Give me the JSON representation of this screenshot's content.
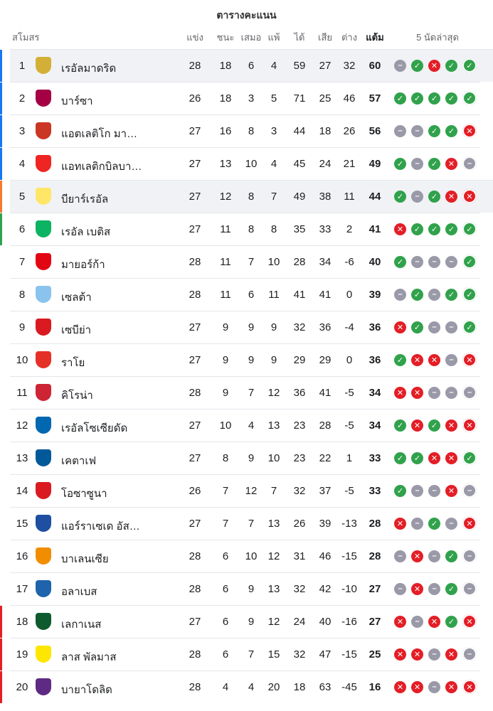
{
  "title": "ตารางคะแนน",
  "headers": {
    "club": "สโมสร",
    "played": "แข่ง",
    "won": "ชนะ",
    "drawn": "เสมอ",
    "lost": "แพ้",
    "gf": "ได้",
    "ga": "เสีย",
    "gd": "ต่าง",
    "pts": "แต้ม",
    "form": "5 นัดล่าสุด"
  },
  "colors": {
    "win": "#31a24c",
    "draw": "#9a99a8",
    "loss": "#e41e26",
    "ucl": "#1877f2",
    "uel": "#f7782f",
    "uecl": "#31a24c",
    "releg": "#e41e26"
  },
  "teams": [
    {
      "pos": "1",
      "name": "เรอัลมาดริด",
      "p": "28",
      "w": "18",
      "d": "6",
      "l": "4",
      "gf": "59",
      "ga": "27",
      "gd": "32",
      "pts": "60",
      "form": "DWLWW",
      "zone": "ucl",
      "crest": "#d4af37"
    },
    {
      "pos": "2",
      "name": "บาร์ซา",
      "p": "26",
      "w": "18",
      "d": "3",
      "l": "5",
      "gf": "71",
      "ga": "25",
      "gd": "46",
      "pts": "57",
      "form": "WWWWW",
      "zone": "ucl",
      "crest": "#a50044"
    },
    {
      "pos": "3",
      "name": "แอตเลติโก มา…",
      "p": "27",
      "w": "16",
      "d": "8",
      "l": "3",
      "gf": "44",
      "ga": "18",
      "gd": "26",
      "pts": "56",
      "form": "DDWWL",
      "zone": "ucl",
      "crest": "#cb3524"
    },
    {
      "pos": "4",
      "name": "แอทเลติกบิลบา…",
      "p": "27",
      "w": "13",
      "d": "10",
      "l": "4",
      "gf": "45",
      "ga": "24",
      "gd": "21",
      "pts": "49",
      "form": "WDWLD",
      "zone": "ucl",
      "crest": "#ee2523"
    },
    {
      "pos": "5",
      "name": "บียาร์เรอัล",
      "p": "27",
      "w": "12",
      "d": "8",
      "l": "7",
      "gf": "49",
      "ga": "38",
      "gd": "11",
      "pts": "44",
      "form": "WDWLL",
      "zone": "uel",
      "crest": "#ffe667"
    },
    {
      "pos": "6",
      "name": "เรอัล เบติส",
      "p": "27",
      "w": "11",
      "d": "8",
      "l": "8",
      "gf": "35",
      "ga": "33",
      "gd": "2",
      "pts": "41",
      "form": "LWWWW",
      "zone": "uecl",
      "crest": "#0bb363"
    },
    {
      "pos": "7",
      "name": "มายอร์ก้า",
      "p": "28",
      "w": "11",
      "d": "7",
      "l": "10",
      "gf": "28",
      "ga": "34",
      "gd": "-6",
      "pts": "40",
      "form": "WDDDW",
      "zone": "",
      "crest": "#e20613"
    },
    {
      "pos": "8",
      "name": "เซลต้า",
      "p": "28",
      "w": "11",
      "d": "6",
      "l": "11",
      "gf": "41",
      "ga": "41",
      "gd": "0",
      "pts": "39",
      "form": "DWDWW",
      "zone": "",
      "crest": "#8ac3ee"
    },
    {
      "pos": "9",
      "name": "เซบีย่า",
      "p": "27",
      "w": "9",
      "d": "9",
      "l": "9",
      "gf": "32",
      "ga": "36",
      "gd": "-4",
      "pts": "36",
      "form": "LWDDW",
      "zone": "",
      "crest": "#d91a21"
    },
    {
      "pos": "10",
      "name": "ราโย",
      "p": "27",
      "w": "9",
      "d": "9",
      "l": "9",
      "gf": "29",
      "ga": "29",
      "gd": "0",
      "pts": "36",
      "form": "WLLDL",
      "zone": "",
      "crest": "#e53027"
    },
    {
      "pos": "11",
      "name": "คิโรน่า",
      "p": "28",
      "w": "9",
      "d": "7",
      "l": "12",
      "gf": "36",
      "ga": "41",
      "gd": "-5",
      "pts": "34",
      "form": "LLDDD",
      "zone": "",
      "crest": "#cd2534"
    },
    {
      "pos": "12",
      "name": "เรอัลโซเซียดัด",
      "p": "27",
      "w": "10",
      "d": "4",
      "l": "13",
      "gf": "23",
      "ga": "28",
      "gd": "-5",
      "pts": "34",
      "form": "WLWLL",
      "zone": "",
      "crest": "#0067b1"
    },
    {
      "pos": "13",
      "name": "เคตาเฟ",
      "p": "27",
      "w": "8",
      "d": "9",
      "l": "10",
      "gf": "23",
      "ga": "22",
      "gd": "1",
      "pts": "33",
      "form": "WWLLW",
      "zone": "",
      "crest": "#005999"
    },
    {
      "pos": "14",
      "name": "โอซาซูนา",
      "p": "26",
      "w": "7",
      "d": "12",
      "l": "7",
      "gf": "32",
      "ga": "37",
      "gd": "-5",
      "pts": "33",
      "form": "WDDLD",
      "zone": "",
      "crest": "#d91a21"
    },
    {
      "pos": "15",
      "name": "แอร์ราเซเด อัส…",
      "p": "27",
      "w": "7",
      "d": "7",
      "l": "13",
      "gf": "26",
      "ga": "39",
      "gd": "-13",
      "pts": "28",
      "form": "LDWDL",
      "zone": "",
      "crest": "#1e4fa1"
    },
    {
      "pos": "16",
      "name": "บาเลนเซีย",
      "p": "28",
      "w": "6",
      "d": "10",
      "l": "12",
      "gf": "31",
      "ga": "46",
      "gd": "-15",
      "pts": "28",
      "form": "DLDWD",
      "zone": "",
      "crest": "#f18e00"
    },
    {
      "pos": "17",
      "name": "อลาเบส",
      "p": "28",
      "w": "6",
      "d": "9",
      "l": "13",
      "gf": "32",
      "ga": "42",
      "gd": "-10",
      "pts": "27",
      "form": "DLDWD",
      "zone": "",
      "crest": "#1e63ab"
    },
    {
      "pos": "18",
      "name": "เลกาเนส",
      "p": "27",
      "w": "6",
      "d": "9",
      "l": "12",
      "gf": "24",
      "ga": "40",
      "gd": "-16",
      "pts": "27",
      "form": "LDLWL",
      "zone": "releg",
      "crest": "#0d5a2f"
    },
    {
      "pos": "19",
      "name": "ลาส พัลมาส",
      "p": "28",
      "w": "6",
      "d": "7",
      "l": "15",
      "gf": "32",
      "ga": "47",
      "gd": "-15",
      "pts": "25",
      "form": "LLDLD",
      "zone": "releg",
      "crest": "#fde602"
    },
    {
      "pos": "20",
      "name": "บายาโดลิด",
      "p": "28",
      "w": "4",
      "d": "4",
      "l": "20",
      "gf": "18",
      "ga": "63",
      "gd": "-45",
      "pts": "16",
      "form": "LLDLL",
      "zone": "releg",
      "crest": "#5e2a84"
    }
  ]
}
